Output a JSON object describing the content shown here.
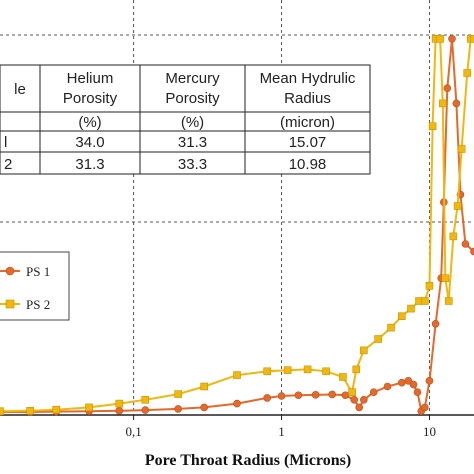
{
  "chart_data": {
    "type": "line",
    "xlabel": "Pore Throat Radius (Microns)",
    "xscale": "log",
    "xlim": [
      0.0125,
      20
    ],
    "ylim": [
      0,
      1
    ],
    "x_ticks": [
      {
        "value": 0.1,
        "label": "0,1"
      },
      {
        "value": 1,
        "label": "1"
      },
      {
        "value": 10,
        "label": "10"
      }
    ],
    "grid": "dashed vertical and horizontal",
    "legend_position": "left",
    "series": [
      {
        "name": "PS 1",
        "color": "#e4692a",
        "marker": "circle",
        "points": [
          [
            0.0125,
            0.008
          ],
          [
            0.02,
            0.008
          ],
          [
            0.03,
            0.009
          ],
          [
            0.05,
            0.01
          ],
          [
            0.08,
            0.011
          ],
          [
            0.12,
            0.013
          ],
          [
            0.2,
            0.016
          ],
          [
            0.3,
            0.02
          ],
          [
            0.5,
            0.03
          ],
          [
            0.8,
            0.045
          ],
          [
            1.0,
            0.05
          ],
          [
            1.3,
            0.052
          ],
          [
            1.7,
            0.053
          ],
          [
            2.2,
            0.054
          ],
          [
            2.7,
            0.052
          ],
          [
            3.1,
            0.04
          ],
          [
            3.35,
            0.02
          ],
          [
            3.6,
            0.04
          ],
          [
            4.2,
            0.06
          ],
          [
            5.2,
            0.075
          ],
          [
            6.5,
            0.085
          ],
          [
            7.2,
            0.09
          ],
          [
            7.8,
            0.08
          ],
          [
            8.3,
            0.06
          ],
          [
            8.8,
            0.01
          ],
          [
            9.3,
            0.02
          ],
          [
            10,
            0.09
          ],
          [
            11,
            0.24
          ],
          [
            12,
            0.36
          ],
          [
            12.5,
            0.56
          ],
          [
            13.2,
            0.86
          ],
          [
            14.2,
            0.99
          ],
          [
            15.2,
            0.82
          ],
          [
            16.2,
            0.58
          ],
          [
            17.5,
            0.45
          ],
          [
            20,
            0.43
          ]
        ]
      },
      {
        "name": "PS 2",
        "color": "#f0b70e",
        "marker": "square",
        "points": [
          [
            0.0125,
            0.01
          ],
          [
            0.02,
            0.011
          ],
          [
            0.03,
            0.014
          ],
          [
            0.05,
            0.02
          ],
          [
            0.08,
            0.03
          ],
          [
            0.12,
            0.04
          ],
          [
            0.2,
            0.055
          ],
          [
            0.3,
            0.075
          ],
          [
            0.5,
            0.105
          ],
          [
            0.8,
            0.115
          ],
          [
            1.1,
            0.118
          ],
          [
            1.5,
            0.12
          ],
          [
            2.0,
            0.115
          ],
          [
            2.6,
            0.1
          ],
          [
            3.0,
            0.06
          ],
          [
            3.2,
            0.12
          ],
          [
            3.6,
            0.17
          ],
          [
            4.5,
            0.2
          ],
          [
            5.5,
            0.23
          ],
          [
            6.5,
            0.26
          ],
          [
            7.5,
            0.28
          ],
          [
            8.5,
            0.3
          ],
          [
            9.3,
            0.3
          ],
          [
            10,
            0.34
          ],
          [
            10.5,
            0.76
          ],
          [
            11,
            0.99
          ],
          [
            11.8,
            0.99
          ],
          [
            12.3,
            0.82
          ],
          [
            12.8,
            0.36
          ],
          [
            13.5,
            0.3
          ],
          [
            14.5,
            0.47
          ],
          [
            15.5,
            0.55
          ],
          [
            16.5,
            0.7
          ],
          [
            18,
            0.9
          ],
          [
            19,
            0.99
          ],
          [
            20,
            0.99
          ]
        ]
      }
    ]
  },
  "table": {
    "headers": [
      {
        "lines": [
          "le"
        ]
      },
      {
        "lines": [
          "Helium",
          "Porosity"
        ]
      },
      {
        "lines": [
          "Mercury",
          "Porosity"
        ]
      },
      {
        "lines": [
          "Mean Hydrulic",
          "Radius"
        ]
      }
    ],
    "units": [
      "",
      "(%)",
      "(%)",
      "(micron)"
    ],
    "rows": [
      [
        "l",
        "34.0",
        "31.3",
        "15.07"
      ],
      [
        "2",
        "31.3",
        "33.3",
        "10.98"
      ]
    ]
  }
}
